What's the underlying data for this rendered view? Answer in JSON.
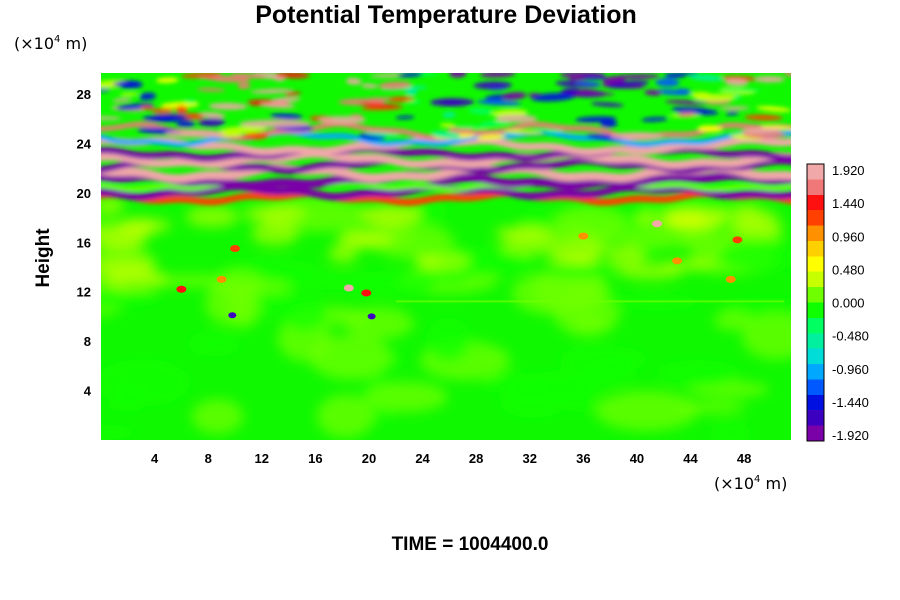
{
  "chart_data": {
    "type": "heatmap",
    "title": "Potential Temperature Deviation",
    "ylabel": "Height",
    "x_unit": {
      "base": "(×10",
      "exp": "4",
      "tail": " m)"
    },
    "y_unit": {
      "base": "(×10",
      "exp": "4",
      "tail": " m)"
    },
    "xlim": [
      0,
      51.5
    ],
    "ylim": [
      0,
      29.7
    ],
    "x_ticks": [
      4,
      8,
      12,
      16,
      20,
      24,
      28,
      32,
      36,
      40,
      44,
      48
    ],
    "y_ticks": [
      4,
      8,
      12,
      16,
      20,
      24,
      28
    ],
    "colorbar": {
      "min": -1.92,
      "max": 1.92,
      "ticks": [
        "1.920",
        "1.440",
        "0.960",
        "0.480",
        "0.000",
        "-0.480",
        "-0.960",
        "-1.440",
        "-1.920"
      ],
      "colors": [
        "#7a00a8",
        "#3c00c0",
        "#0010e0",
        "#0058ff",
        "#00a8ff",
        "#00dcd8",
        "#00f0a0",
        "#00ff60",
        "#10ff00",
        "#70ff00",
        "#c8ff00",
        "#ffff00",
        "#ffd000",
        "#ff9000",
        "#ff4000",
        "#ff1010",
        "#f07878",
        "#f0a8a8"
      ]
    },
    "field_description": "Near-zero deviation in lower region; strong alternating positive/negative banded layer near heights 19-25; wavy mixed structure above 24.",
    "footer": "TIME = 1004400.0"
  }
}
